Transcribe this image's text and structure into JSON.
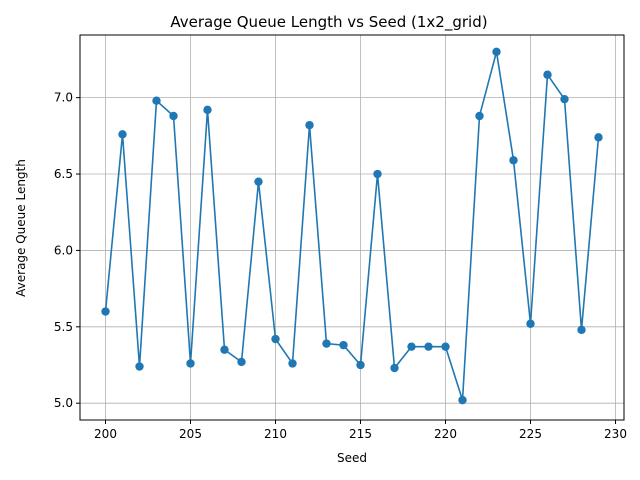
{
  "chart_data": {
    "type": "line",
    "title": "Average Queue Length vs Seed (1x2_grid)",
    "xlabel": "Seed",
    "ylabel": "Average Queue Length",
    "xlim": [
      198.5,
      230.5
    ],
    "ylim": [
      4.89,
      7.41
    ],
    "xticks": [
      200,
      205,
      210,
      215,
      220,
      225,
      230
    ],
    "yticks": [
      5.0,
      5.5,
      6.0,
      6.5,
      7.0
    ],
    "ytick_labels": [
      "5.0",
      "5.5",
      "6.0",
      "6.5",
      "7.0"
    ],
    "grid": true,
    "color": "#1f77b4",
    "marker": "circle",
    "x": [
      200,
      201,
      202,
      203,
      204,
      205,
      206,
      207,
      208,
      209,
      210,
      211,
      212,
      213,
      214,
      215,
      216,
      217,
      218,
      219,
      220,
      221,
      222,
      223,
      224,
      225,
      226,
      227,
      228,
      229
    ],
    "y": [
      5.6,
      6.76,
      5.24,
      6.98,
      6.88,
      5.26,
      6.92,
      5.35,
      5.27,
      6.45,
      5.42,
      5.26,
      6.82,
      5.39,
      5.38,
      5.25,
      6.5,
      5.23,
      5.37,
      5.37,
      5.37,
      5.02,
      6.88,
      7.3,
      6.59,
      5.52,
      7.15,
      6.99,
      5.48,
      6.74
    ]
  }
}
